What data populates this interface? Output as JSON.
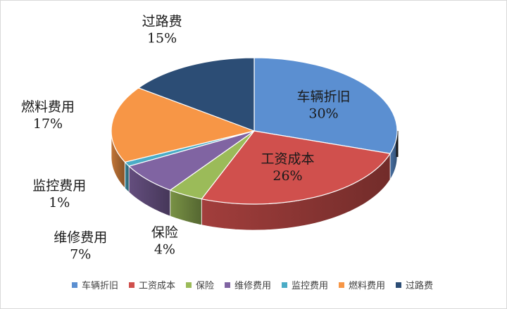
{
  "chart_data": {
    "type": "pie",
    "title": "",
    "three_d": true,
    "legend_position": "bottom",
    "categories": [
      "车辆折旧",
      "工资成本",
      "保险",
      "维修费用",
      "监控费用",
      "燃料费用",
      "过路费"
    ],
    "values": [
      30,
      26,
      4,
      7,
      1,
      17,
      15
    ],
    "data_labels": [
      "30%",
      "26%",
      "4%",
      "7%",
      "1%",
      "17%",
      "15%"
    ],
    "colors": [
      "#5b8fd1",
      "#d0504d",
      "#9bbb59",
      "#8064a2",
      "#4bacc6",
      "#f79646",
      "#2c4d75"
    ]
  }
}
